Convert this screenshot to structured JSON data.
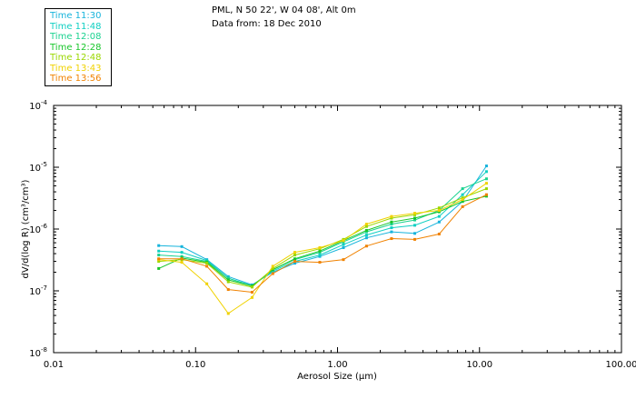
{
  "header": {
    "title": "PML, N 50 22', W 04 08', Alt 0m",
    "subtitle": "Data from: 18 Dec 2010"
  },
  "chart_data": {
    "type": "line",
    "x_scale": "log",
    "y_scale": "log",
    "xlim": [
      0.01,
      100.0
    ],
    "ylim": [
      1e-08,
      0.0001
    ],
    "xlabel": "Aerosol Size (µm)",
    "ylabel": "dV/d(log R) (cm³/cm³)",
    "x_ticks": [
      {
        "value": 0.01,
        "label": "0.01"
      },
      {
        "value": 0.1,
        "label": "0.10"
      },
      {
        "value": 1.0,
        "label": "1.00"
      },
      {
        "value": 10.0,
        "label": "10.00"
      },
      {
        "value": 100.0,
        "label": "100.00"
      }
    ],
    "y_ticks": [
      {
        "value": 1e-08,
        "base": "10",
        "exp": "-8"
      },
      {
        "value": 1e-07,
        "base": "10",
        "exp": "-7"
      },
      {
        "value": 1e-06,
        "base": "10",
        "exp": "-6"
      },
      {
        "value": 1e-05,
        "base": "10",
        "exp": "-5"
      },
      {
        "value": 0.0001,
        "base": "10",
        "exp": "-4"
      }
    ],
    "grid": false,
    "legend_position": "top-left",
    "x": [
      0.055,
      0.08,
      0.12,
      0.17,
      0.25,
      0.35,
      0.5,
      0.75,
      1.1,
      1.6,
      2.4,
      3.5,
      5.2,
      7.6,
      11.2
    ],
    "series": [
      {
        "name": "Time 11:30",
        "color": "#17b4dc",
        "values": [
          5.4e-07,
          5.2e-07,
          3.2e-07,
          1.7e-07,
          1.25e-07,
          2e-07,
          2.8e-07,
          3.6e-07,
          5e-07,
          7.2e-07,
          9e-07,
          8.5e-07,
          1.3e-06,
          2.8e-06,
          1.05e-05
        ]
      },
      {
        "name": "Time 11:48",
        "color": "#0fcfc2",
        "values": [
          4.4e-07,
          4.2e-07,
          3.1e-07,
          1.6e-07,
          1.2e-07,
          2.1e-07,
          3e-07,
          3.8e-07,
          5.6e-07,
          8e-07,
          1.05e-06,
          1.15e-06,
          1.6e-06,
          3.6e-06,
          8.5e-06
        ]
      },
      {
        "name": "Time 12:08",
        "color": "#1bd290",
        "values": [
          3.8e-07,
          3.6e-07,
          3e-07,
          1.6e-07,
          1.2e-07,
          2.2e-07,
          3.2e-07,
          4.2e-07,
          6.2e-07,
          9e-07,
          1.2e-06,
          1.4e-06,
          2e-06,
          4.5e-06,
          6.5e-06
        ]
      },
      {
        "name": "Time 12:28",
        "color": "#18c62a",
        "values": [
          2.3e-07,
          3.4e-07,
          2.9e-07,
          1.5e-07,
          1.2e-07,
          2.2e-07,
          3.3e-07,
          4.4e-07,
          6.5e-07,
          9.5e-07,
          1.3e-06,
          1.5e-06,
          1.9e-06,
          2.8e-06,
          3.4e-06
        ]
      },
      {
        "name": "Time 12:48",
        "color": "#9ad700",
        "values": [
          3e-07,
          3.2e-07,
          2.8e-07,
          1.4e-07,
          1.15e-07,
          2.3e-07,
          3.8e-07,
          4.8e-07,
          6.8e-07,
          1.1e-06,
          1.5e-06,
          1.7e-06,
          2.2e-06,
          3.2e-06,
          4.5e-06
        ]
      },
      {
        "name": "Time 13:43",
        "color": "#f0d200",
        "values": [
          3.2e-07,
          2.9e-07,
          1.3e-07,
          4.3e-08,
          7.8e-08,
          2.5e-07,
          4.2e-07,
          5e-07,
          6.5e-07,
          1.2e-06,
          1.6e-06,
          1.8e-06,
          2e-06,
          3e-06,
          5.5e-06
        ]
      },
      {
        "name": "Time 13:56",
        "color": "#f08200",
        "values": [
          3.3e-07,
          3.3e-07,
          2.5e-07,
          1.05e-07,
          9.5e-08,
          1.9e-07,
          3e-07,
          2.9e-07,
          3.2e-07,
          5.3e-07,
          7e-07,
          6.8e-07,
          8.3e-07,
          2.3e-06,
          3.6e-06
        ]
      }
    ]
  }
}
